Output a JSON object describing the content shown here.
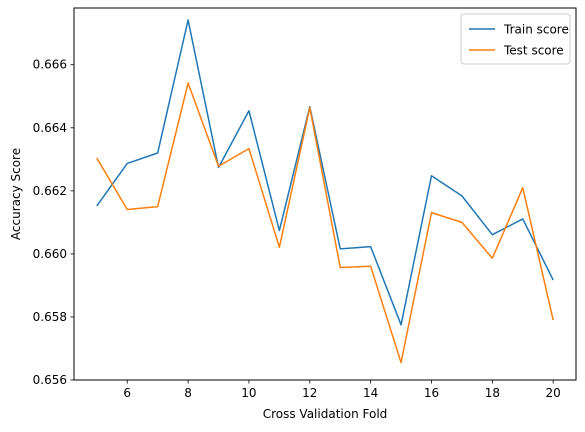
{
  "chart_data": {
    "type": "line",
    "title": "",
    "xlabel": "Cross Validation Fold",
    "ylabel": "Accuracy Score",
    "x": [
      5,
      6,
      7,
      8,
      9,
      10,
      11,
      12,
      13,
      14,
      15,
      16,
      17,
      18,
      19,
      20
    ],
    "xlim": [
      4.25,
      20.75
    ],
    "ylim": [
      0.656,
      0.6678
    ],
    "xticks": [
      6,
      8,
      10,
      12,
      14,
      16,
      18,
      20
    ],
    "xtick_labels": [
      "6",
      "8",
      "10",
      "12",
      "14",
      "16",
      "18",
      "20"
    ],
    "yticks": [
      0.656,
      0.658,
      0.66,
      0.662,
      0.664,
      0.666
    ],
    "ytick_labels": [
      "0.656",
      "0.658",
      "0.660",
      "0.662",
      "0.664",
      "0.666"
    ],
    "grid": false,
    "legend_position": "top-right",
    "series": [
      {
        "name": "Train score",
        "color": "#1f77b4",
        "values": [
          0.66152,
          0.66287,
          0.6632,
          0.66742,
          0.66274,
          0.66454,
          0.66074,
          0.66467,
          0.66016,
          0.66023,
          0.65775,
          0.66248,
          0.66184,
          0.66061,
          0.66111,
          0.65917
        ]
      },
      {
        "name": "Test score",
        "color": "#ff7f0e",
        "values": [
          0.66304,
          0.66141,
          0.6615,
          0.66542,
          0.66278,
          0.66334,
          0.66021,
          0.66464,
          0.65957,
          0.65961,
          0.65655,
          0.66131,
          0.661,
          0.65986,
          0.6621,
          0.6579
        ]
      }
    ]
  }
}
